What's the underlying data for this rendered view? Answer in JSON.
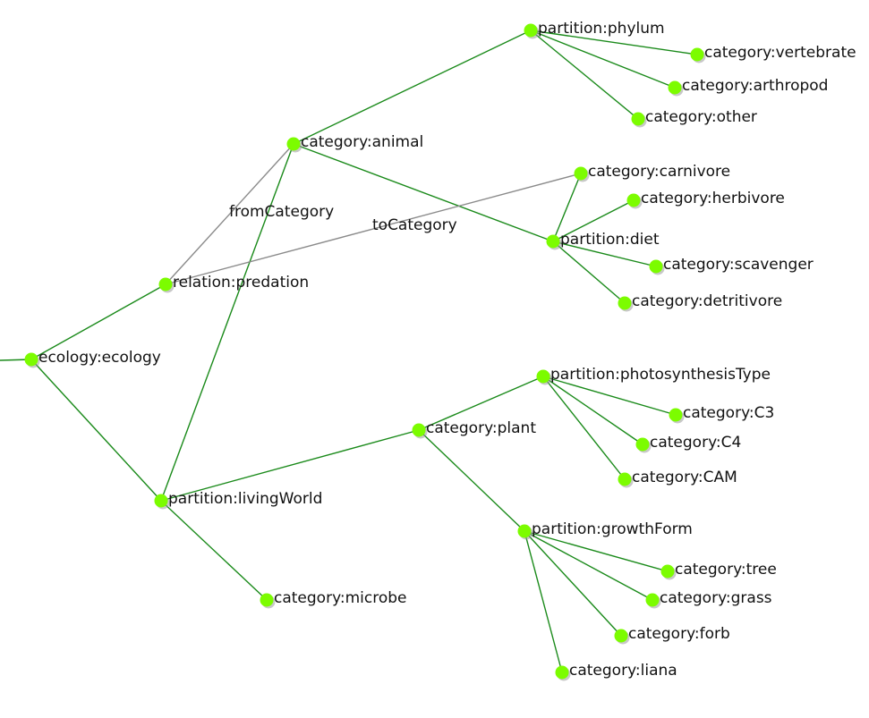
{
  "nodes": [
    {
      "id": "ecology",
      "label": "ecology:ecology"
    },
    {
      "id": "predation",
      "label": "relation:predation"
    },
    {
      "id": "livingWorld",
      "label": "partition:livingWorld"
    },
    {
      "id": "animal",
      "label": "category:animal"
    },
    {
      "id": "plant",
      "label": "category:plant"
    },
    {
      "id": "microbe",
      "label": "category:microbe"
    },
    {
      "id": "phylum",
      "label": "partition:phylum"
    },
    {
      "id": "vertebrate",
      "label": "category:vertebrate"
    },
    {
      "id": "arthropod",
      "label": "category:arthropod"
    },
    {
      "id": "other",
      "label": "category:other"
    },
    {
      "id": "diet",
      "label": "partition:diet"
    },
    {
      "id": "carnivore",
      "label": "category:carnivore"
    },
    {
      "id": "herbivore",
      "label": "category:herbivore"
    },
    {
      "id": "scavenger",
      "label": "category:scavenger"
    },
    {
      "id": "detritivore",
      "label": "category:detritivore"
    },
    {
      "id": "photosynthesisType",
      "label": "partition:photosynthesisType"
    },
    {
      "id": "c3",
      "label": "category:C3"
    },
    {
      "id": "c4",
      "label": "category:C4"
    },
    {
      "id": "cam",
      "label": "category:CAM"
    },
    {
      "id": "growthForm",
      "label": "partition:growthForm"
    },
    {
      "id": "tree",
      "label": "category:tree"
    },
    {
      "id": "grass",
      "label": "category:grass"
    },
    {
      "id": "forb",
      "label": "category:forb"
    },
    {
      "id": "liana",
      "label": "category:liana"
    }
  ],
  "edges": [
    {
      "from": "ecology",
      "to": "predation",
      "kind": "tree"
    },
    {
      "from": "ecology",
      "to": "livingWorld",
      "kind": "tree"
    },
    {
      "from": "livingWorld",
      "to": "animal",
      "kind": "tree"
    },
    {
      "from": "livingWorld",
      "to": "plant",
      "kind": "tree"
    },
    {
      "from": "livingWorld",
      "to": "microbe",
      "kind": "tree"
    },
    {
      "from": "animal",
      "to": "phylum",
      "kind": "tree"
    },
    {
      "from": "animal",
      "to": "diet",
      "kind": "tree"
    },
    {
      "from": "phylum",
      "to": "vertebrate",
      "kind": "tree"
    },
    {
      "from": "phylum",
      "to": "arthropod",
      "kind": "tree"
    },
    {
      "from": "phylum",
      "to": "other",
      "kind": "tree"
    },
    {
      "from": "diet",
      "to": "carnivore",
      "kind": "tree"
    },
    {
      "from": "diet",
      "to": "herbivore",
      "kind": "tree"
    },
    {
      "from": "diet",
      "to": "scavenger",
      "kind": "tree"
    },
    {
      "from": "diet",
      "to": "detritivore",
      "kind": "tree"
    },
    {
      "from": "plant",
      "to": "photosynthesisType",
      "kind": "tree"
    },
    {
      "from": "plant",
      "to": "growthForm",
      "kind": "tree"
    },
    {
      "from": "photosynthesisType",
      "to": "c3",
      "kind": "tree"
    },
    {
      "from": "photosynthesisType",
      "to": "c4",
      "kind": "tree"
    },
    {
      "from": "photosynthesisType",
      "to": "cam",
      "kind": "tree"
    },
    {
      "from": "growthForm",
      "to": "tree",
      "kind": "tree"
    },
    {
      "from": "growthForm",
      "to": "grass",
      "kind": "tree"
    },
    {
      "from": "growthForm",
      "to": "forb",
      "kind": "tree"
    },
    {
      "from": "growthForm",
      "to": "liana",
      "kind": "tree"
    },
    {
      "from": "predation",
      "to": "animal",
      "kind": "relation",
      "label": "fromCategory"
    },
    {
      "from": "predation",
      "to": "carnivore",
      "kind": "relation",
      "label": "toCategory"
    }
  ],
  "colors": {
    "tree_edge": "#1a8a1a",
    "relation_edge": "#8a8a8a",
    "node": "#7cfc00",
    "label": "#111111"
  }
}
